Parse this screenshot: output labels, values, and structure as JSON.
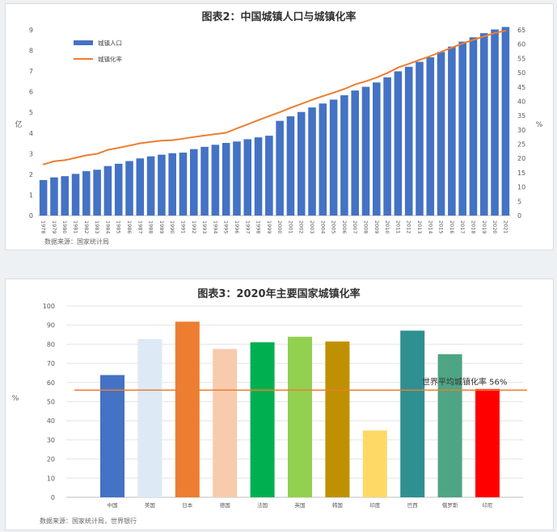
{
  "charts": [
    {
      "title": "图表2：中国城镇人口与城镇化率",
      "source": "数据来源：国家统计局",
      "y_left_label": "亿",
      "y_right_label": "%",
      "legend": [
        {
          "label": "城镇人口",
          "color": "#4472c4"
        },
        {
          "label": "城镇化率",
          "color": "#ed7d31"
        }
      ]
    },
    {
      "title": "图表3：2020年主要国家城镇化率",
      "source": "数据来源：国家统计局，世界银行",
      "y_label": "%",
      "reference_label": "世界平均城镇化率 56%"
    }
  ],
  "chart_data": [
    {
      "type": "bar",
      "title": "图表2：中国城镇人口与城镇化率",
      "categories": [
        "1978",
        "1979",
        "1980",
        "1981",
        "1982",
        "1983",
        "1984",
        "1985",
        "1986",
        "1987",
        "1988",
        "1989",
        "1990",
        "1991",
        "1992",
        "1993",
        "1994",
        "1995",
        "1996",
        "1997",
        "1998",
        "1999",
        "2000",
        "2001",
        "2002",
        "2003",
        "2004",
        "2005",
        "2006",
        "2007",
        "2008",
        "2009",
        "2010",
        "2011",
        "2012",
        "2013",
        "2014",
        "2015",
        "2016",
        "2017",
        "2018",
        "2019",
        "2020",
        "2021"
      ],
      "series": [
        {
          "name": "城镇人口",
          "type": "bar",
          "axis": "left",
          "color": "#4472c4",
          "values": [
            1.72,
            1.85,
            1.91,
            2.02,
            2.15,
            2.22,
            2.4,
            2.51,
            2.64,
            2.77,
            2.87,
            2.95,
            3.02,
            3.05,
            3.22,
            3.33,
            3.43,
            3.52,
            3.59,
            3.7,
            3.79,
            3.87,
            4.59,
            4.81,
            5.02,
            5.24,
            5.43,
            5.62,
            5.83,
            6.06,
            6.24,
            6.45,
            6.7,
            6.99,
            7.21,
            7.45,
            7.67,
            7.93,
            8.19,
            8.43,
            8.64,
            8.84,
            9.02,
            9.14
          ]
        },
        {
          "name": "城镇化率",
          "type": "line",
          "axis": "right",
          "color": "#ed7d31",
          "values": [
            17.9,
            19.0,
            19.4,
            20.2,
            21.1,
            21.6,
            23.0,
            23.7,
            24.5,
            25.3,
            25.8,
            26.2,
            26.4,
            26.9,
            27.5,
            28.0,
            28.5,
            29.0,
            30.5,
            31.9,
            33.4,
            34.8,
            36.2,
            37.7,
            39.1,
            40.5,
            41.8,
            43.0,
            44.3,
            45.9,
            47.0,
            48.3,
            49.9,
            51.8,
            53.1,
            54.5,
            55.8,
            57.3,
            58.8,
            60.2,
            61.5,
            62.7,
            63.9,
            64.7
          ]
        }
      ],
      "ylim_left": [
        0,
        9
      ],
      "ylim_right": [
        0,
        65
      ],
      "grid": false,
      "legend_position": "top-left"
    },
    {
      "type": "bar",
      "title": "图表3：2020年主要国家城镇化率",
      "categories": [
        "中国",
        "美国",
        "日本",
        "德国",
        "法国",
        "英国",
        "韩国",
        "印度",
        "巴西",
        "俄罗斯",
        "印尼"
      ],
      "values": [
        63.9,
        82.7,
        91.8,
        77.5,
        81.0,
        83.9,
        81.4,
        34.9,
        87.1,
        74.8,
        56.6
      ],
      "colors": [
        "#4472c4",
        "#dde9f5",
        "#ed7d31",
        "#f8cbad",
        "#00b050",
        "#92d050",
        "#bf9000",
        "#ffd966",
        "#2e9090",
        "#4ea584",
        "#ff0000"
      ],
      "reference_line": {
        "value": 56,
        "label": "世界平均城镇化率 56%",
        "color": "#ed7d31"
      },
      "ylim": [
        0,
        100
      ],
      "yticks": [
        0,
        10,
        20,
        30,
        40,
        50,
        60,
        70,
        80,
        90,
        100
      ],
      "grid": true
    }
  ]
}
